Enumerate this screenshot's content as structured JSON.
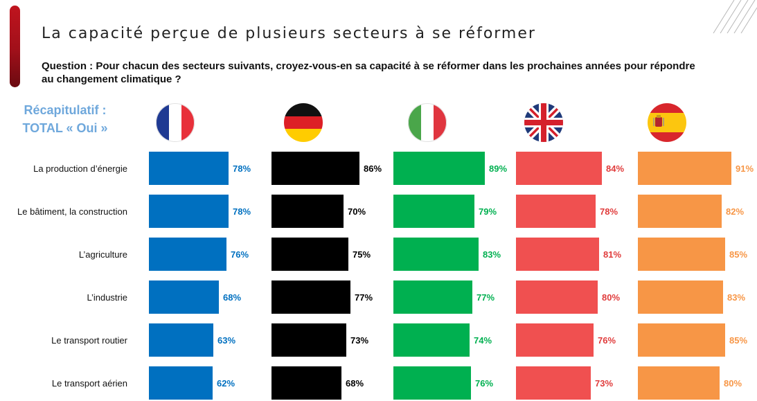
{
  "title": "La capacité perçue de plusieurs secteurs à se réformer",
  "question": "Question : Pour chacun des secteurs suivants, croyez-vous-en sa capacité à se réformer dans les prochaines années pour répondre au changement climatique ?",
  "recap": {
    "line1": "Récapitulatif :",
    "line2": "TOTAL « Oui »"
  },
  "chart_data": {
    "type": "bar",
    "orientation": "horizontal",
    "categories": [
      "La production d’énergie",
      "Le bâtiment, la construction",
      "L’agriculture",
      "L’industrie",
      "Le transport routier",
      "Le transport aérien"
    ],
    "xlim": [
      0,
      100
    ],
    "unit": "%",
    "series": [
      {
        "flag": "france-flag-icon",
        "color": "#0070c0",
        "label_color": "#0070c0",
        "values": [
          78,
          78,
          76,
          68,
          63,
          62
        ]
      },
      {
        "flag": "germany-flag-icon",
        "color": "#000000",
        "label_color": "#000000",
        "values": [
          86,
          70,
          75,
          77,
          73,
          68
        ]
      },
      {
        "flag": "italy-flag-icon",
        "color": "#00b050",
        "label_color": "#00b050",
        "values": [
          89,
          79,
          83,
          77,
          74,
          76
        ]
      },
      {
        "flag": "uk-flag-icon",
        "color": "#f05050",
        "label_color": "#e03c3c",
        "values": [
          84,
          78,
          81,
          80,
          76,
          73
        ]
      },
      {
        "flag": "spain-flag-icon",
        "color": "#f79646",
        "label_color": "#f79646",
        "values": [
          91,
          82,
          85,
          83,
          85,
          80
        ]
      }
    ]
  }
}
